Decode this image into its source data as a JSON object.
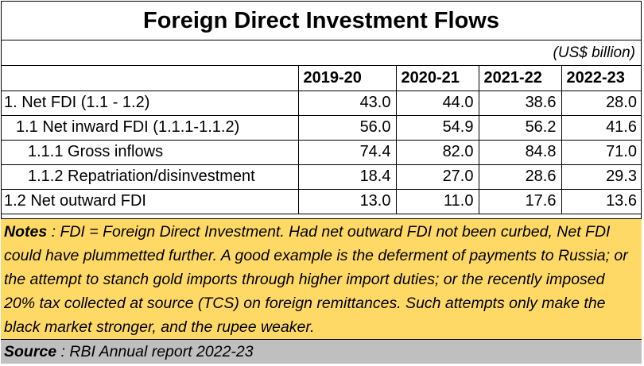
{
  "title": "Foreign Direct Investment Flows",
  "unit": "(US$ billion)",
  "table": {
    "columns": [
      "2019-20",
      "2020-21",
      "2021-22",
      "2022-23"
    ],
    "rows": [
      {
        "label": "1. Net FDI (1.1 - 1.2)",
        "values": [
          "43.0",
          "44.0",
          "38.6",
          "28.0"
        ]
      },
      {
        "label": "1.1 Net inward FDI (1.1.1-1.1.2)",
        "values": [
          "56.0",
          "54.9",
          "56.2",
          "41.6"
        ]
      },
      {
        "label": "1.1.1 Gross inflows",
        "values": [
          "74.4",
          "82.0",
          "84.8",
          "71.0"
        ]
      },
      {
        "label": "1.1.2 Repatriation/disinvestment",
        "values": [
          "18.4",
          "27.0",
          "28.6",
          "29.3"
        ]
      },
      {
        "label": "1.2 Net outward FDI",
        "values": [
          "13.0",
          "11.0",
          "17.6",
          "13.6"
        ]
      }
    ]
  },
  "notes": {
    "label": "Notes",
    "text": " : FDI = Foreign Direct Investment.  Had net outward FDI not been curbed, Net FDI could have plummetted further.  A good example is the deferment of payments to Russia; or the attempt to stanch gold imports through higher import duties; or the recently imposed 20% tax collected at source (TCS) on foreign remittances.  Such attempts only make the black market stronger, and the rupee weaker."
  },
  "source": {
    "label": "Source",
    "text": " : RBI Annual report 2022-23"
  },
  "colors": {
    "notes_bg": "#ffd966",
    "source_bg": "#bfbfbf"
  }
}
